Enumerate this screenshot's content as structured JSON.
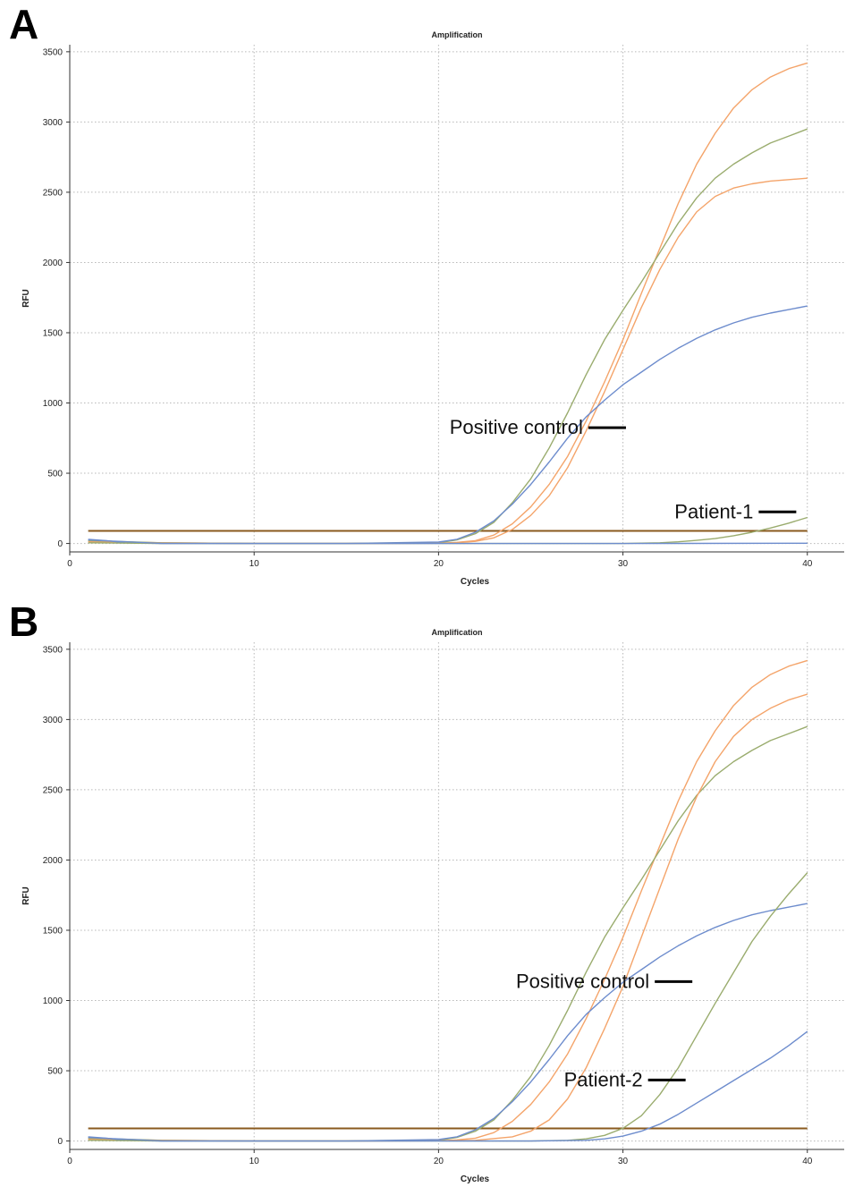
{
  "panels": [
    {
      "letter": "A",
      "chart_data": {
        "type": "line",
        "title": "Amplification",
        "xlabel": "Cycles",
        "ylabel": "RFU",
        "xlim": [
          0,
          42
        ],
        "ylim": [
          -60,
          3550
        ],
        "xticks": [
          0,
          10,
          20,
          30,
          40
        ],
        "yticks": [
          0,
          500,
          1000,
          1500,
          2000,
          2500,
          3000,
          3500
        ],
        "grid": true,
        "threshold": 90,
        "series": [
          {
            "color": "#f4a46a",
            "x": [
              1,
              5,
              10,
              15,
              20,
              21,
              22,
              23,
              24,
              25,
              26,
              27,
              28,
              29,
              30,
              31,
              32,
              33,
              34,
              35,
              36,
              37,
              38,
              39,
              40
            ],
            "y": [
              15,
              5,
              0,
              0,
              2,
              8,
              20,
              60,
              140,
              260,
              420,
              620,
              870,
              1150,
              1450,
              1780,
              2100,
              2420,
              2700,
              2920,
              3100,
              3230,
              3320,
              3380,
              3420
            ]
          },
          {
            "color": "#9aac6e",
            "x": [
              1,
              5,
              10,
              15,
              20,
              21,
              22,
              23,
              24,
              25,
              26,
              27,
              28,
              29,
              30,
              31,
              32,
              33,
              34,
              35,
              36,
              37,
              38,
              39,
              40
            ],
            "y": [
              20,
              5,
              0,
              0,
              5,
              25,
              70,
              150,
              290,
              460,
              680,
              930,
              1200,
              1450,
              1660,
              1860,
              2070,
              2280,
              2460,
              2600,
              2700,
              2780,
              2850,
              2900,
              2950
            ]
          },
          {
            "color": "#f4a46a",
            "x": [
              1,
              5,
              10,
              15,
              20,
              21,
              22,
              23,
              24,
              25,
              26,
              27,
              28,
              29,
              30,
              31,
              32,
              33,
              34,
              35,
              36,
              37,
              38,
              39,
              40
            ],
            "y": [
              10,
              3,
              0,
              0,
              2,
              5,
              15,
              40,
              100,
              200,
              340,
              540,
              800,
              1080,
              1380,
              1680,
              1950,
              2180,
              2360,
              2470,
              2530,
              2560,
              2580,
              2590,
              2600
            ]
          },
          {
            "color": "#6d8ccd",
            "x": [
              1,
              2,
              3,
              5,
              10,
              15,
              20,
              21,
              22,
              23,
              24,
              25,
              26,
              27,
              28,
              29,
              30,
              31,
              32,
              33,
              34,
              35,
              36,
              37,
              38,
              39,
              40
            ],
            "y": [
              30,
              20,
              5,
              0,
              0,
              0,
              10,
              30,
              80,
              160,
              280,
              420,
              580,
              750,
              900,
              1020,
              1130,
              1220,
              1310,
              1390,
              1460,
              1520,
              1570,
              1610,
              1640,
              1665,
              1690
            ]
          },
          {
            "color": "#9aac6e",
            "x": [
              1,
              5,
              10,
              15,
              20,
              25,
              30,
              32,
              33,
              34,
              35,
              36,
              37,
              38,
              39,
              40
            ],
            "y": [
              5,
              0,
              0,
              0,
              0,
              0,
              0,
              5,
              12,
              22,
              35,
              55,
              80,
              110,
              145,
              185
            ]
          },
          {
            "color": "#6d8ccd",
            "x": [
              1,
              5,
              10,
              20,
              30,
              40
            ],
            "y": [
              25,
              0,
              0,
              0,
              0,
              2
            ]
          }
        ],
        "annotations": [
          {
            "text": "Positive control",
            "x": 20.6,
            "y": 780
          },
          {
            "text": "Patient-1",
            "x": 32.8,
            "y": 180
          }
        ]
      }
    },
    {
      "letter": "B",
      "chart_data": {
        "type": "line",
        "title": "Amplification",
        "xlabel": "Cycles",
        "ylabel": "RFU",
        "xlim": [
          0,
          42
        ],
        "ylim": [
          -60,
          3550
        ],
        "xticks": [
          0,
          10,
          20,
          30,
          40
        ],
        "yticks": [
          0,
          500,
          1000,
          1500,
          2000,
          2500,
          3000,
          3500
        ],
        "grid": true,
        "threshold": 90,
        "series": [
          {
            "color": "#f4a46a",
            "x": [
              1,
              5,
              10,
              15,
              20,
              21,
              22,
              23,
              24,
              25,
              26,
              27,
              28,
              29,
              30,
              31,
              32,
              33,
              34,
              35,
              36,
              37,
              38,
              39,
              40
            ],
            "y": [
              15,
              5,
              0,
              0,
              2,
              8,
              20,
              60,
              140,
              260,
              420,
              620,
              870,
              1150,
              1450,
              1780,
              2100,
              2420,
              2700,
              2920,
              3100,
              3230,
              3320,
              3380,
              3420
            ]
          },
          {
            "color": "#9aac6e",
            "x": [
              1,
              5,
              10,
              15,
              20,
              21,
              22,
              23,
              24,
              25,
              26,
              27,
              28,
              29,
              30,
              31,
              32,
              33,
              34,
              35,
              36,
              37,
              38,
              39,
              40
            ],
            "y": [
              20,
              5,
              0,
              0,
              5,
              25,
              70,
              150,
              290,
              460,
              680,
              930,
              1200,
              1450,
              1660,
              1860,
              2070,
              2280,
              2460,
              2600,
              2700,
              2780,
              2850,
              2900,
              2950
            ]
          },
          {
            "color": "#f4a46a",
            "x": [
              1,
              5,
              10,
              15,
              20,
              22,
              24,
              25,
              26,
              27,
              28,
              29,
              30,
              31,
              32,
              33,
              34,
              35,
              36,
              37,
              38,
              39,
              40
            ],
            "y": [
              10,
              3,
              0,
              0,
              2,
              5,
              30,
              70,
              150,
              300,
              520,
              800,
              1100,
              1450,
              1800,
              2150,
              2450,
              2700,
              2880,
              3000,
              3080,
              3140,
              3180
            ]
          },
          {
            "color": "#6d8ccd",
            "x": [
              1,
              2,
              3,
              5,
              10,
              15,
              20,
              21,
              22,
              23,
              24,
              25,
              26,
              27,
              28,
              29,
              30,
              31,
              32,
              33,
              34,
              35,
              36,
              37,
              38,
              39,
              40
            ],
            "y": [
              30,
              20,
              5,
              0,
              0,
              0,
              10,
              30,
              80,
              160,
              280,
              420,
              580,
              750,
              900,
              1020,
              1130,
              1220,
              1310,
              1390,
              1460,
              1520,
              1570,
              1610,
              1640,
              1665,
              1690
            ]
          },
          {
            "color": "#9aac6e",
            "x": [
              1,
              5,
              10,
              20,
              25,
              27,
              28,
              29,
              30,
              31,
              32,
              33,
              34,
              35,
              36,
              37,
              38,
              39,
              40
            ],
            "y": [
              5,
              0,
              0,
              0,
              0,
              5,
              15,
              40,
              90,
              180,
              330,
              520,
              750,
              980,
              1200,
              1420,
              1600,
              1760,
              1910
            ]
          },
          {
            "color": "#6d8ccd",
            "x": [
              1,
              5,
              10,
              20,
              25,
              28,
              29,
              30,
              31,
              32,
              33,
              34,
              35,
              36,
              37,
              38,
              39,
              40
            ],
            "y": [
              25,
              0,
              0,
              0,
              0,
              5,
              15,
              35,
              70,
              120,
              190,
              270,
              350,
              430,
              510,
              590,
              680,
              780
            ]
          }
        ],
        "annotations": [
          {
            "text": "Positive control",
            "x": 24.2,
            "y": 1090
          },
          {
            "text": "Patient-2",
            "x": 26.8,
            "y": 390
          }
        ]
      }
    }
  ]
}
